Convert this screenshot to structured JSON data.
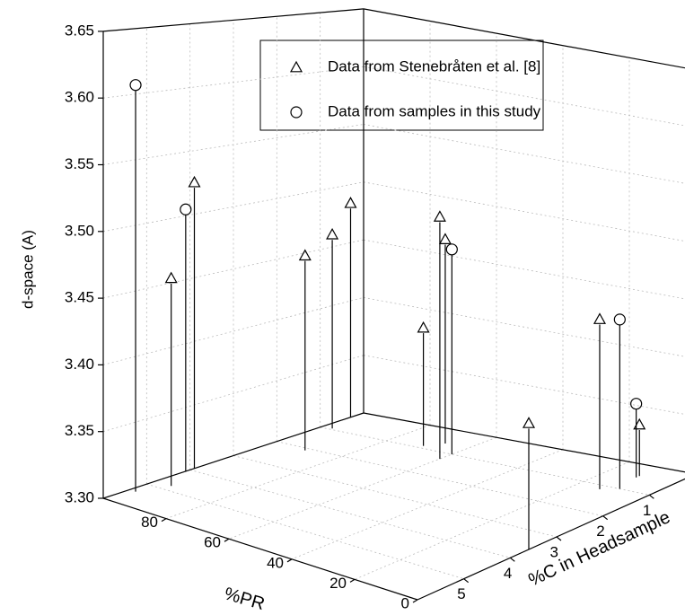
{
  "chart_data": {
    "type": "scatter3d",
    "xlabel": "%PR",
    "ylabel": "%C in Headsample",
    "zlabel": "d-space (A)",
    "xlim": [
      0,
      100
    ],
    "xticks": [
      0,
      20,
      40,
      60,
      80
    ],
    "ylim": [
      0,
      6
    ],
    "yticks": [
      0,
      1,
      2,
      3,
      4,
      5
    ],
    "zlim": [
      3.3,
      3.65
    ],
    "zticks": [
      {
        "value": 3.3,
        "label": "3.30"
      },
      {
        "value": 3.35,
        "label": "3.35"
      },
      {
        "value": 3.4,
        "label": "3.40"
      },
      {
        "value": 3.45,
        "label": "3.45"
      },
      {
        "value": 3.5,
        "label": "3.50"
      },
      {
        "value": 3.55,
        "label": "3.55"
      },
      {
        "value": 3.6,
        "label": "3.60"
      },
      {
        "value": 3.65,
        "label": "3.65"
      }
    ],
    "grid": true,
    "legend": "top",
    "series": [
      {
        "name": "Data from Stenebråten et al. [8]",
        "marker": "triangle",
        "color": "#000000",
        "pr": [
          95,
          100,
          90,
          97,
          100,
          70,
          60,
          67,
          0,
          13,
          11
        ],
        "c": [
          4.8,
          3.9,
          2.1,
          0.95,
          0.3,
          0.9,
          1.27,
          0.63,
          3.6,
          1.15,
          0.43
        ],
        "d": [
          3.46,
          3.525,
          3.46,
          3.464,
          3.484,
          3.4,
          3.503,
          3.474,
          3.4,
          3.443,
          3.344
        ]
      },
      {
        "name": "Data from samples in this study",
        "marker": "circle",
        "color": "#000000",
        "pr": [
          98,
          100,
          60,
          9,
          11
        ],
        "c": [
          5.4,
          4.1,
          1.0,
          1.0,
          0.5
        ],
        "d": [
          3.609,
          3.505,
          3.473,
          3.443,
          3.363
        ]
      }
    ]
  }
}
